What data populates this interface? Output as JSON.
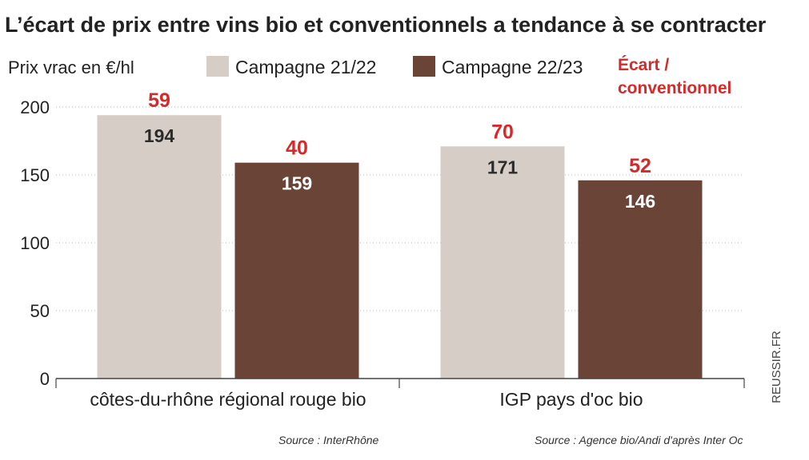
{
  "chart_data": {
    "type": "bar",
    "title": "L’écart de prix entre vins bio et conventionnels a tendance à se contracter",
    "ylabel": "Prix vrac en €/hl",
    "ylim": [
      0,
      200
    ],
    "yticks": [
      "200",
      "150",
      "100",
      "50",
      "0"
    ],
    "categories": [
      "côtes-du-rhône régional rouge bio",
      "IGP pays d'oc bio"
    ],
    "series": [
      {
        "name": "Campagne 21/22",
        "values": [
          194,
          171
        ],
        "labels": [
          "194",
          "171"
        ],
        "color": "#d6cec6",
        "label_color": "#2b2b2b"
      },
      {
        "name": "Campagne 22/23",
        "values": [
          159,
          146
        ],
        "labels": [
          "159",
          "146"
        ],
        "color": "#6b4438",
        "label_color": "#ffffff"
      }
    ],
    "ecart": {
      "legend": [
        "Écart /",
        "conventionnel"
      ],
      "values": [
        [
          "59",
          "40"
        ],
        [
          "70",
          "52"
        ]
      ],
      "color": "#d42a2a"
    },
    "sources": [
      "Source : InterRhône",
      "Source : Agence bio/Andi d'après Inter Oc"
    ],
    "credit": "REUSSIR.FR",
    "grid": true,
    "legend_position": "top"
  }
}
